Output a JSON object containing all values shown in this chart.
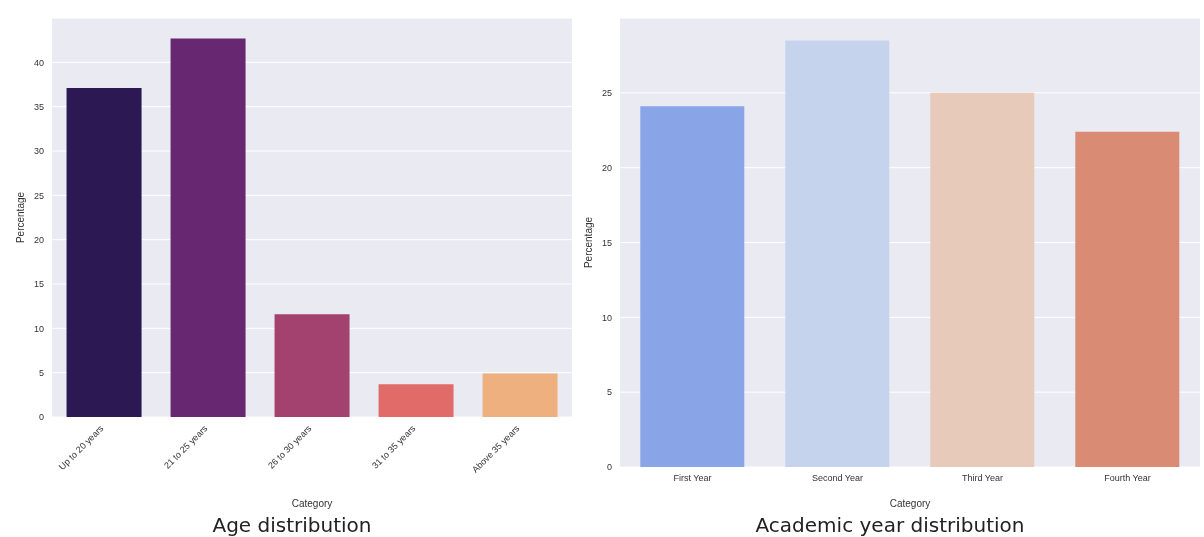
{
  "chart_data": [
    {
      "type": "bar",
      "title": "Age distribution",
      "xlabel": "Category",
      "ylabel": "Percentage",
      "categories": [
        "Up to 20 years",
        "21 to 25 years",
        "26 to 30 years",
        "31 to 35 years",
        "Above 35 years"
      ],
      "values": [
        37.1,
        42.7,
        11.6,
        3.7,
        4.9
      ],
      "colors": [
        "#2c1853",
        "#672771",
        "#a3416f",
        "#e06b69",
        "#efb080"
      ],
      "ylim": [
        0,
        45
      ],
      "yticks": [
        0,
        5,
        10,
        15,
        20,
        25,
        30,
        35,
        40
      ],
      "grid": "y"
    },
    {
      "type": "bar",
      "title": "Academic year distribution",
      "xlabel": "Category",
      "ylabel": "Percentage",
      "categories": [
        "First Year",
        "Second Year",
        "Third Year",
        "Fourth Year"
      ],
      "values": [
        24.1,
        28.5,
        25.0,
        22.4
      ],
      "colors": [
        "#8aa4e8",
        "#c5d3ed",
        "#e7cab9",
        "#da8b74"
      ],
      "ylim": [
        0,
        30
      ],
      "yticks": [
        0,
        5,
        10,
        15,
        20,
        25
      ],
      "grid": "y"
    }
  ]
}
